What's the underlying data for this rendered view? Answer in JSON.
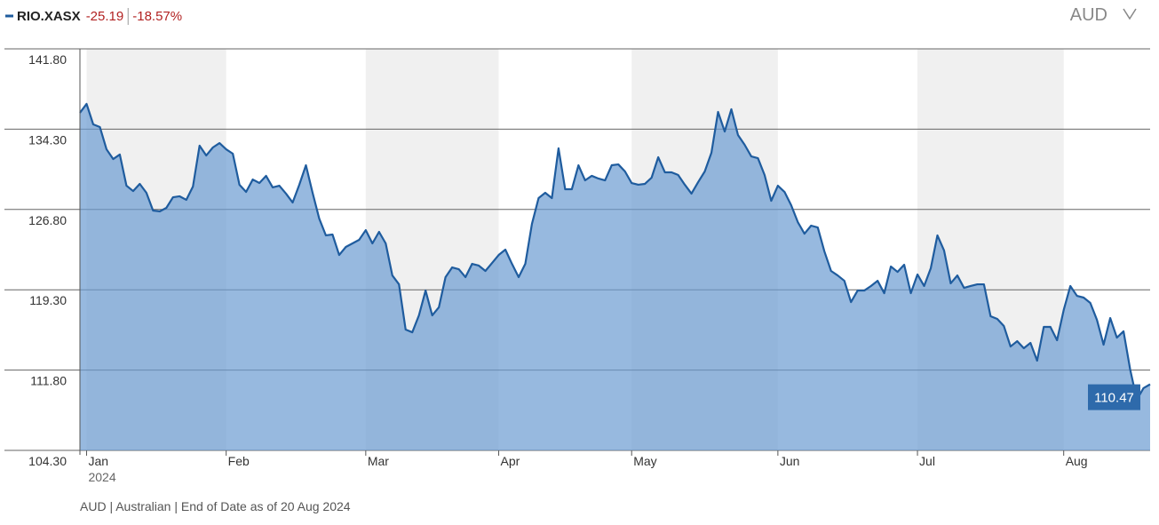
{
  "chart_data": {
    "type": "area",
    "series": [
      {
        "name": "RIO.XASX",
        "color": "#1f5c9e",
        "fill": "#6b9bd1",
        "values": [
          135.83,
          136.66,
          134.75,
          134.5,
          132.42,
          131.51,
          131.93,
          129.02,
          128.52,
          129.19,
          128.36,
          126.7,
          126.62,
          126.95,
          127.94,
          128.03,
          127.7,
          128.94,
          132.76,
          131.84,
          132.59,
          133.0,
          132.42,
          132.01,
          129.11,
          128.44,
          129.6,
          129.27,
          129.94,
          128.86,
          129.02,
          128.28,
          127.45,
          129.11,
          130.93,
          128.36,
          125.95,
          124.38,
          124.46,
          122.55,
          123.3,
          123.63,
          123.96,
          124.87,
          123.63,
          124.71,
          123.63,
          120.64,
          119.81,
          115.58,
          115.33,
          116.91,
          119.23,
          116.91,
          117.66,
          120.48,
          121.39,
          121.22,
          120.48,
          121.72,
          121.56,
          121.06,
          121.8,
          122.55,
          123.05,
          121.72,
          120.48,
          121.72,
          125.45,
          127.86,
          128.36,
          127.86,
          132.51,
          128.69,
          128.69,
          130.93,
          129.52,
          129.94,
          129.69,
          129.52,
          130.93,
          131.01,
          130.35,
          129.27,
          129.11,
          129.19,
          129.77,
          131.68,
          130.27,
          130.27,
          130.02,
          129.11,
          128.28,
          129.35,
          130.35,
          132.09,
          135.91,
          134.08,
          136.16,
          133.75,
          132.84,
          131.76,
          131.59,
          130.02,
          127.61,
          129.02,
          128.44,
          127.2,
          125.62,
          124.54,
          125.29,
          125.12,
          122.88,
          121.06,
          120.64,
          120.14,
          118.15,
          119.23,
          119.23,
          119.65,
          120.14,
          118.98,
          121.47,
          120.97,
          121.64,
          118.98,
          120.73,
          119.65,
          121.31,
          124.38,
          122.97,
          119.9,
          120.64,
          119.48,
          119.65,
          119.81,
          119.81,
          116.83,
          116.58,
          115.91,
          114.0,
          114.5,
          113.84,
          114.34,
          112.68,
          115.83,
          115.83,
          114.59,
          117.41,
          119.65,
          118.73,
          118.57,
          118.07,
          116.49,
          114.17,
          116.66,
          114.83,
          115.42,
          111.85,
          109.03,
          110.11,
          110.47
        ]
      }
    ],
    "categories": [
      null,
      "Jan",
      null,
      null,
      null,
      null,
      null,
      null,
      null,
      null,
      null,
      null,
      null,
      null,
      null,
      null,
      null,
      null,
      null,
      null,
      null,
      null,
      "Feb",
      null,
      null,
      null,
      null,
      null,
      null,
      null,
      null,
      null,
      null,
      null,
      null,
      null,
      null,
      null,
      null,
      null,
      null,
      null,
      null,
      "Mar",
      null,
      null,
      null,
      null,
      null,
      null,
      null,
      null,
      null,
      null,
      null,
      null,
      null,
      null,
      null,
      null,
      null,
      null,
      null,
      "Apr",
      null,
      null,
      null,
      null,
      null,
      null,
      null,
      null,
      null,
      null,
      null,
      null,
      null,
      null,
      null,
      null,
      null,
      null,
      null,
      "May",
      null,
      null,
      null,
      null,
      null,
      null,
      null,
      null,
      null,
      null,
      null,
      null,
      null,
      null,
      null,
      null,
      null,
      null,
      null,
      null,
      null,
      "Jun",
      null,
      null,
      null,
      null,
      null,
      null,
      null,
      null,
      null,
      null,
      null,
      null,
      null,
      null,
      null,
      null,
      null,
      null,
      null,
      null,
      "Jul",
      null,
      null,
      null,
      null,
      null,
      null,
      null,
      null,
      null,
      null,
      null,
      null,
      null,
      null,
      null,
      null,
      null,
      null,
      null,
      null,
      null,
      "Aug",
      null,
      null,
      null,
      null,
      null,
      null,
      null,
      null,
      null,
      null,
      null,
      null,
      null
    ],
    "year_label": "2024",
    "change": "-25.19",
    "change_percent": "-18.57%",
    "change_color": "#b22222",
    "currency": "AUD",
    "annotation": "110.47",
    "footnote": "AUD | Australian | End of Date as of 20 Aug 2024",
    "ylim": [
      104.3,
      141.8
    ],
    "yticks": [
      {
        "value": 104.3,
        "label": "104.30"
      },
      {
        "value": 111.8,
        "label": "111.80"
      },
      {
        "value": 119.3,
        "label": "119.30"
      },
      {
        "value": 126.8,
        "label": "126.80"
      },
      {
        "value": 134.3,
        "label": "134.30"
      },
      {
        "value": 141.8,
        "label": "141.80"
      }
    ],
    "grid": true,
    "band_color": "#f0f0f0"
  }
}
